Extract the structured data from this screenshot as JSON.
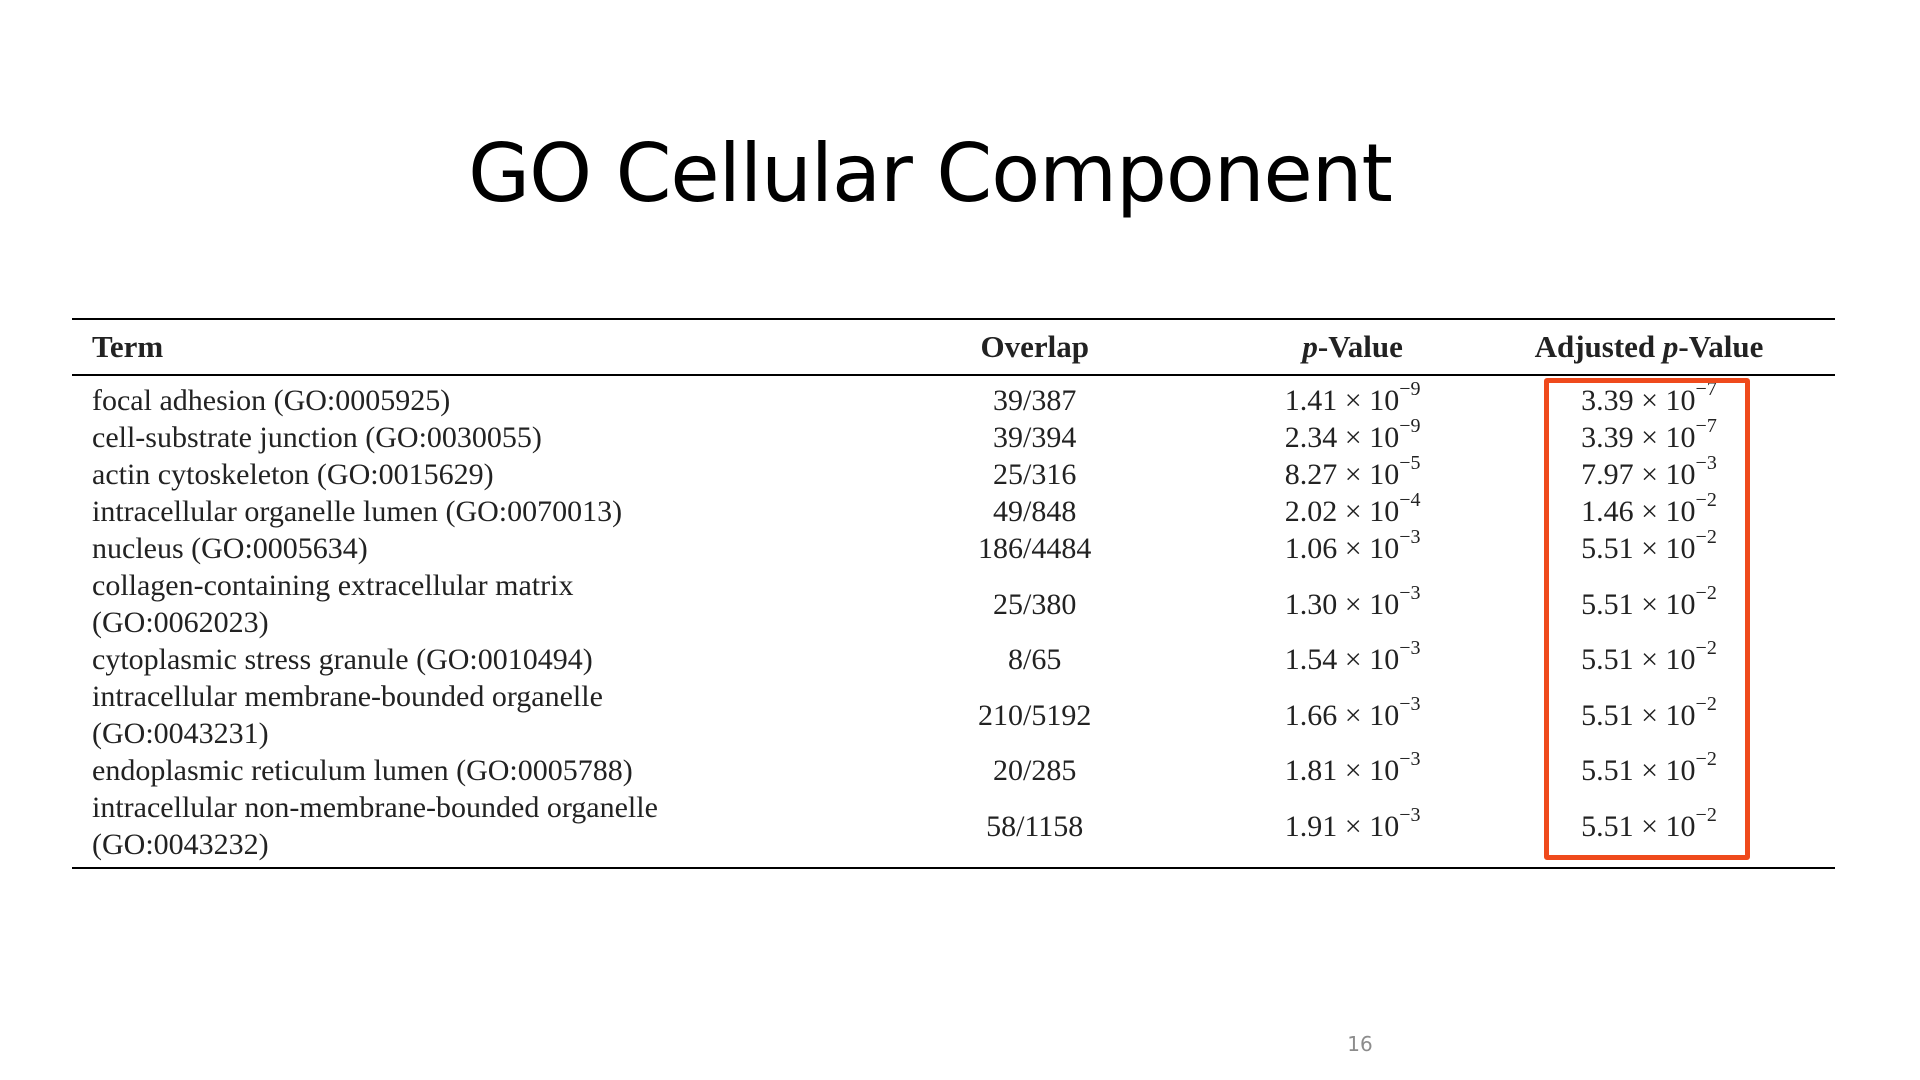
{
  "slide": {
    "title": "GO Cellular Component",
    "page_number": "16",
    "highlight_color": "#ef4a1c"
  },
  "table": {
    "headers": {
      "term": "Term",
      "overlap": "Overlap",
      "p_value_italic": "p",
      "p_value_rest": "-Value",
      "adjusted_prefix": "Adjusted ",
      "adjusted_italic": "p",
      "adjusted_rest": "-Value"
    },
    "rows": [
      {
        "term": "focal adhesion (GO:0005925)",
        "overlap": "39/387",
        "p_mant": "1.41 × 10",
        "p_exp": "−9",
        "adj_mant": "3.39 × 10",
        "adj_exp": "−7"
      },
      {
        "term": "cell-substrate junction (GO:0030055)",
        "overlap": "39/394",
        "p_mant": "2.34 × 10",
        "p_exp": "−9",
        "adj_mant": "3.39 × 10",
        "adj_exp": "−7"
      },
      {
        "term": "actin cytoskeleton (GO:0015629)",
        "overlap": "25/316",
        "p_mant": "8.27 × 10",
        "p_exp": "−5",
        "adj_mant": "7.97 × 10",
        "adj_exp": "−3"
      },
      {
        "term": "intracellular organelle lumen (GO:0070013)",
        "overlap": "49/848",
        "p_mant": "2.02 × 10",
        "p_exp": "−4",
        "adj_mant": "1.46 × 10",
        "adj_exp": "−2"
      },
      {
        "term": "nucleus (GO:0005634)",
        "overlap": "186/4484",
        "p_mant": "1.06 × 10",
        "p_exp": "−3",
        "adj_mant": "5.51 × 10",
        "adj_exp": "−2"
      },
      {
        "term_line1": "collagen-containing extracellular matrix",
        "term_line2": "(GO:0062023)",
        "overlap": "25/380",
        "p_mant": "1.30 × 10",
        "p_exp": "−3",
        "adj_mant": "5.51 × 10",
        "adj_exp": "−2"
      },
      {
        "term": "cytoplasmic stress granule (GO:0010494)",
        "overlap": "8/65",
        "p_mant": "1.54 × 10",
        "p_exp": "−3",
        "adj_mant": "5.51 × 10",
        "adj_exp": "−2"
      },
      {
        "term_line1": "intracellular membrane-bounded organelle",
        "term_line2": "(GO:0043231)",
        "overlap": "210/5192",
        "p_mant": "1.66 × 10",
        "p_exp": "−3",
        "adj_mant": "5.51 × 10",
        "adj_exp": "−2"
      },
      {
        "term": "endoplasmic reticulum lumen (GO:0005788)",
        "overlap": "20/285",
        "p_mant": "1.81 × 10",
        "p_exp": "−3",
        "adj_mant": "5.51 × 10",
        "adj_exp": "−2"
      },
      {
        "term_line1": "intracellular non-membrane-bounded organelle",
        "term_line2": "(GO:0043232)",
        "overlap": "58/1158",
        "p_mant": "1.91 × 10",
        "p_exp": "−3",
        "adj_mant": "5.51 × 10",
        "adj_exp": "−2"
      }
    ]
  }
}
